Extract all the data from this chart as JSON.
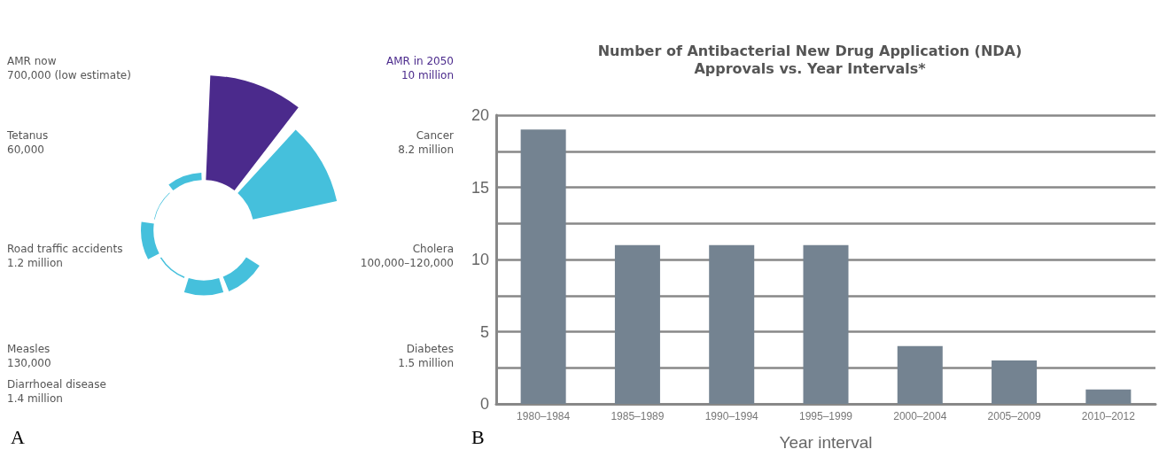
{
  "chart_data": [
    {
      "type": "other",
      "categories": [
        "AMR in 2050",
        "Cancer",
        "Cholera",
        "Diabetes",
        "Diarrhoeal disease",
        "Measles",
        "Road traffic accidents",
        "Tetanus",
        "AMR now"
      ],
      "values": [
        10000000,
        8200000,
        null,
        1500000,
        1400000,
        130000,
        1200000,
        60000,
        700000
      ],
      "value_labels": [
        "10 million",
        "8.2 million",
        "100,000–120,000",
        "1.5 million",
        "1.4 million",
        "130,000",
        "1.2 million",
        "60,000",
        "700,000 (low estimate)"
      ],
      "colors": [
        "#4b2a8c",
        "#45c0dc",
        "#45c0dc",
        "#45c0dc",
        "#45c0dc",
        "#45c0dc",
        "#45c0dc",
        "#45c0dc",
        "#45c0dc"
      ],
      "annotations": [
        "A"
      ]
    },
    {
      "type": "bar",
      "title": "Number of Antibacterial New Drug Application (NDA)\nApprovals vs. Year Intervals*",
      "xlabel": "Year interval",
      "categories": [
        "1980–1984",
        "1985–1989",
        "1990–1994",
        "1995–1999",
        "2000–2004",
        "2005–2009",
        "2010–2012"
      ],
      "values": [
        19,
        11,
        11,
        11,
        4,
        3,
        1
      ],
      "color": "#748391",
      "ylim": [
        0,
        20
      ],
      "yticks": [
        0,
        {
          "value": 2.5,
          "label": null
        },
        5,
        {
          "value": 7.5,
          "label": null
        },
        10,
        {
          "value": 12.5,
          "label": null
        },
        15,
        {
          "value": 17.5,
          "label": null
        },
        20
      ],
      "grid": "y",
      "annotations": [
        "B"
      ]
    }
  ]
}
